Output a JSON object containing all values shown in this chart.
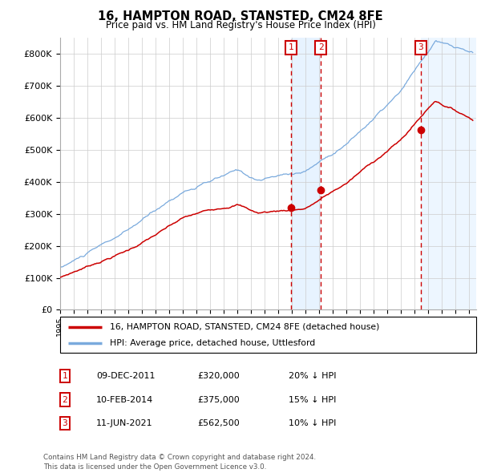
{
  "title": "16, HAMPTON ROAD, STANSTED, CM24 8FE",
  "subtitle": "Price paid vs. HM Land Registry's House Price Index (HPI)",
  "ylabel_ticks": [
    "£0",
    "£100K",
    "£200K",
    "£300K",
    "£400K",
    "£500K",
    "£600K",
    "£700K",
    "£800K"
  ],
  "ytick_values": [
    0,
    100000,
    200000,
    300000,
    400000,
    500000,
    600000,
    700000,
    800000
  ],
  "ylim": [
    0,
    850000
  ],
  "xlim_start": 1995.0,
  "xlim_end": 2025.5,
  "sale_dates": [
    2011.93,
    2014.1,
    2021.44
  ],
  "sale_prices": [
    320000,
    375000,
    562500
  ],
  "sale_labels": [
    "1",
    "2",
    "3"
  ],
  "sale_color": "#cc0000",
  "hpi_color": "#7aaadd",
  "shade_color": "#ddeeff",
  "legend_sale_label": "16, HAMPTON ROAD, STANSTED, CM24 8FE (detached house)",
  "legend_hpi_label": "HPI: Average price, detached house, Uttlesford",
  "table_entries": [
    {
      "label": "1",
      "date": "09-DEC-2011",
      "price": "£320,000",
      "hpi": "20% ↓ HPI"
    },
    {
      "label": "2",
      "date": "10-FEB-2014",
      "price": "£375,000",
      "hpi": "15% ↓ HPI"
    },
    {
      "label": "3",
      "date": "11-JUN-2021",
      "price": "£562,500",
      "hpi": "10% ↓ HPI"
    }
  ],
  "footnote": "Contains HM Land Registry data © Crown copyright and database right 2024.\nThis data is licensed under the Open Government Licence v3.0.",
  "background_color": "#ffffff",
  "grid_color": "#cccccc"
}
